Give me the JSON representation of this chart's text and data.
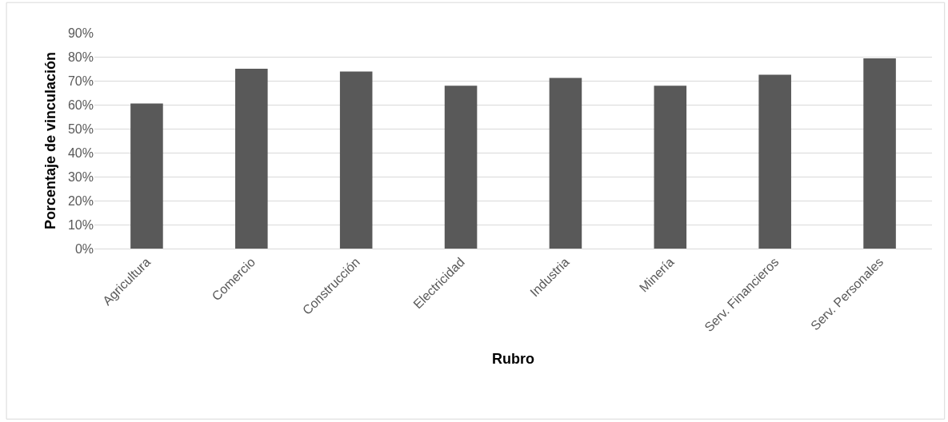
{
  "chart_data": {
    "type": "bar",
    "xlabel": "Rubro",
    "ylabel": "Porcentaje de vinculación",
    "categories": [
      "Agricultura",
      "Comercio",
      "Construcción",
      "Electricidad",
      "Industria",
      "Minería",
      "Serv. Financieros",
      "Serv. Personales"
    ],
    "values": [
      60.5,
      75,
      73.8,
      67.9,
      71.2,
      67.9,
      72.5,
      79.3
    ],
    "color": "#595959",
    "ylim": [
      0,
      90
    ],
    "yticks": [
      {
        "value": 0,
        "label": "0%"
      },
      {
        "value": 10,
        "label": "10%"
      },
      {
        "value": 20,
        "label": "20%"
      },
      {
        "value": 30,
        "label": "30%"
      },
      {
        "value": 40,
        "label": "40%"
      },
      {
        "value": 50,
        "label": "50%"
      },
      {
        "value": 60,
        "label": "60%"
      },
      {
        "value": 70,
        "label": "70%"
      },
      {
        "value": 80,
        "label": "80%"
      },
      {
        "value": 90,
        "label": "90%"
      }
    ],
    "grid": "y",
    "legend": false
  }
}
